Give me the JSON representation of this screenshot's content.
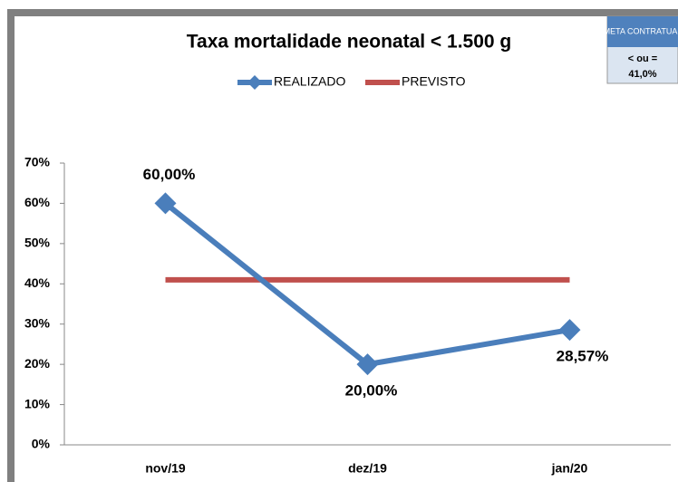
{
  "chart_data": {
    "type": "line",
    "title": "Taxa mortalidade neonatal < 1.500 g",
    "categories": [
      "nov/19",
      "dez/19",
      "jan/20"
    ],
    "series": [
      {
        "name": "REALIZADO",
        "color": "#4a7ebb",
        "values": [
          60,
          20,
          28.57
        ],
        "value_labels": [
          "60,00%",
          "20,00%",
          "28,57%"
        ],
        "marker": "diamond"
      },
      {
        "name": "PREVISTO",
        "color": "#c0504d",
        "values": [
          41,
          41,
          41
        ]
      }
    ],
    "ylim": [
      0,
      70
    ],
    "yticks": [
      {
        "value": 0,
        "label": "0%"
      },
      {
        "value": 10,
        "label": "10%"
      },
      {
        "value": 20,
        "label": "20%"
      },
      {
        "value": 30,
        "label": "30%"
      },
      {
        "value": 40,
        "label": "40%"
      },
      {
        "value": 50,
        "label": "50%"
      },
      {
        "value": 60,
        "label": "60%"
      },
      {
        "value": 70,
        "label": "70%"
      }
    ],
    "legend": "top",
    "annotations": [
      "META CONTRATUAL",
      "< ou =",
      "41,0%"
    ]
  }
}
